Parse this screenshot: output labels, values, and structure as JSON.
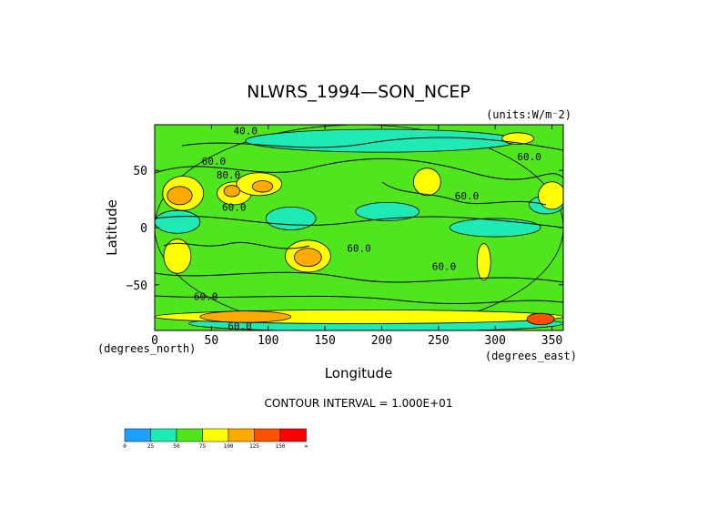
{
  "chart_data": {
    "type": "heatmap",
    "subtype": "filled-contour map",
    "title": "NLWRS_1994—SON_NCEP",
    "units_label": "(units:W/m⁻2)",
    "xlabel": "Longitude",
    "ylabel": "Latitude",
    "x_units_label": "(degrees_east)",
    "y_units_label": "(degrees_north)",
    "xlim": [
      0,
      360
    ],
    "ylim": [
      -90,
      90
    ],
    "x_ticks": [
      0,
      50,
      100,
      150,
      200,
      250,
      300,
      350
    ],
    "y_ticks": [
      -50,
      0,
      50
    ],
    "contour_interval_text": "CONTOUR INTERVAL = 1.000E+01",
    "contour_labels": [
      {
        "text": "40.0",
        "lon": 80,
        "lat": 85
      },
      {
        "text": "60.0",
        "lon": 52,
        "lat": 58
      },
      {
        "text": "80.0",
        "lon": 65,
        "lat": 46
      },
      {
        "text": "60.0",
        "lon": 70,
        "lat": 18
      },
      {
        "text": "60.0",
        "lon": 180,
        "lat": -18
      },
      {
        "text": "60.0",
        "lon": 255,
        "lat": -34
      },
      {
        "text": "60.0",
        "lon": 275,
        "lat": 28
      },
      {
        "text": "60.0",
        "lon": 330,
        "lat": 62
      },
      {
        "text": "60.0",
        "lon": 45,
        "lat": -60
      },
      {
        "text": "60.0",
        "lon": 75,
        "lat": -86
      }
    ],
    "colorbar": {
      "colors": [
        "#1ea0ff",
        "#1eebb4",
        "#50e61e",
        "#ffff00",
        "#ffaa00",
        "#ff5000",
        "#ff0000"
      ],
      "tick_labels": [
        "0",
        "25",
        "50",
        "75",
        "100",
        "125",
        "150",
        "∞"
      ]
    },
    "regions": [
      {
        "lon": 180,
        "lat": 0,
        "rx": 180,
        "ry": 90,
        "level": 2
      },
      {
        "lon": 200,
        "lat": 76,
        "rx": 120,
        "ry": 10,
        "level": 1
      },
      {
        "lon": 205,
        "lat": 14,
        "rx": 28,
        "ry": 8,
        "level": 1
      },
      {
        "lon": 120,
        "lat": 8,
        "rx": 22,
        "ry": 10,
        "level": 1
      },
      {
        "lon": 20,
        "lat": 5,
        "rx": 20,
        "ry": 10,
        "level": 1
      },
      {
        "lon": 300,
        "lat": 0,
        "rx": 40,
        "ry": 8,
        "level": 1
      },
      {
        "lon": 345,
        "lat": 20,
        "rx": 15,
        "ry": 8,
        "level": 1
      },
      {
        "lon": 195,
        "lat": -84,
        "rx": 165,
        "ry": 7,
        "level": 1
      },
      {
        "lon": 25,
        "lat": 30,
        "rx": 18,
        "ry": 15,
        "level": 3
      },
      {
        "lon": 70,
        "lat": 30,
        "rx": 15,
        "ry": 10,
        "level": 3
      },
      {
        "lon": 92,
        "lat": 38,
        "rx": 20,
        "ry": 10,
        "level": 3
      },
      {
        "lon": 22,
        "lat": 28,
        "rx": 11,
        "ry": 8,
        "level": 4
      },
      {
        "lon": 68,
        "lat": 32,
        "rx": 7,
        "ry": 5,
        "level": 4
      },
      {
        "lon": 95,
        "lat": 36,
        "rx": 9,
        "ry": 5,
        "level": 4
      },
      {
        "lon": 240,
        "lat": 40,
        "rx": 12,
        "ry": 12,
        "level": 3
      },
      {
        "lon": 350,
        "lat": 28,
        "rx": 12,
        "ry": 12,
        "level": 3
      },
      {
        "lon": 20,
        "lat": -25,
        "rx": 12,
        "ry": 15,
        "level": 3
      },
      {
        "lon": 135,
        "lat": -25,
        "rx": 20,
        "ry": 14,
        "level": 3
      },
      {
        "lon": 135,
        "lat": -26,
        "rx": 12,
        "ry": 8,
        "level": 4
      },
      {
        "lon": 290,
        "lat": -30,
        "rx": 6,
        "ry": 16,
        "level": 3
      },
      {
        "lon": 320,
        "lat": 78,
        "rx": 14,
        "ry": 5,
        "level": 3
      },
      {
        "lon": 180,
        "lat": -78,
        "rx": 180,
        "ry": 6,
        "level": 3
      },
      {
        "lon": 80,
        "lat": -78,
        "rx": 40,
        "ry": 5,
        "level": 4
      },
      {
        "lon": 340,
        "lat": -80,
        "rx": 12,
        "ry": 5,
        "level": 5
      }
    ]
  }
}
